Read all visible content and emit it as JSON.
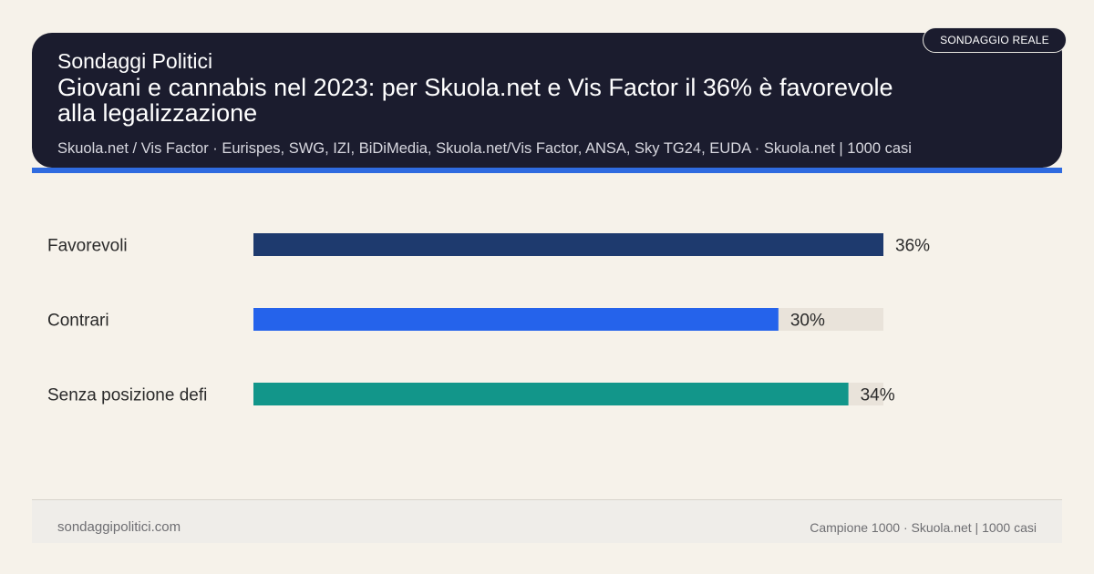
{
  "header": {
    "kicker": "Sondaggi Politici",
    "title": "Giovani e cannabis nel 2023: per Skuola.net e Vis Factor il 36% è favorevole alla legalizzazione",
    "sources": "Skuola.net / Vis Factor · Eurispes, SWG, IZI, BiDiMedia, Skuola.net/Vis Factor, ANSA, Sky TG24, EUDA · Skuola.net | 1000 casi",
    "badge": "SONDAGGIO REALE"
  },
  "footer": {
    "site": "sondaggipolitici.com",
    "meta": "Campione 1000 · Skuola.net | 1000 casi"
  },
  "colors": {
    "header_bg": "#1b1c2e",
    "accent": "#2f6be0",
    "track": "#e9e3da",
    "background": "#f6f2ea"
  },
  "chart_data": {
    "type": "bar",
    "orientation": "horizontal",
    "categories": [
      "Favorevoli",
      "Contrari",
      "Senza posizione defi"
    ],
    "values": [
      36,
      30,
      34
    ],
    "value_labels": [
      "36%",
      "30%",
      "34%"
    ],
    "colors": [
      "#1e3a6e",
      "#2563eb",
      "#12968a"
    ],
    "xlim": [
      0,
      36
    ],
    "unit": "%",
    "grid": false,
    "legend": "none"
  }
}
